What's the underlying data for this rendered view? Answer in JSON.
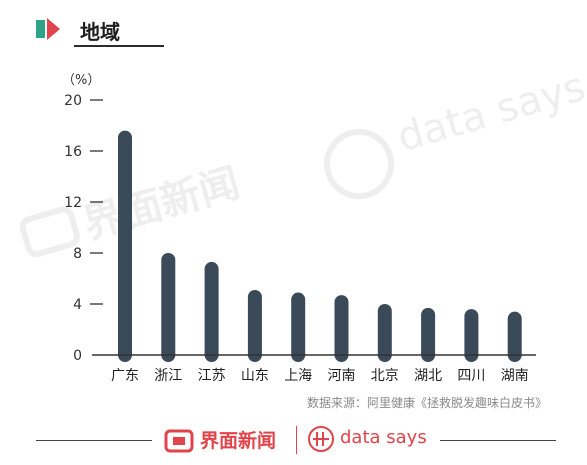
{
  "header": {
    "title": "地域"
  },
  "source_note": "数据来源：阿里健康《拯救脱发趣味白皮书》",
  "footer": {
    "brand": "界面新闻",
    "partner": "data says"
  },
  "watermark": {
    "brand": "界面新闻",
    "partner": "data says"
  },
  "colors": {
    "bar": "#3b4a58",
    "accent_red": "#e1444a",
    "accent_teal": "#2fa38a",
    "axis": "#333333"
  },
  "chart_data": {
    "type": "bar",
    "unit_label": "（%）",
    "categories": [
      "广东",
      "浙江",
      "江苏",
      "山东",
      "上海",
      "河南",
      "北京",
      "湖北",
      "四川",
      "湖南"
    ],
    "values": [
      17.6,
      8.0,
      7.3,
      5.1,
      4.9,
      4.7,
      4.0,
      3.7,
      3.6,
      3.4
    ],
    "yticks": [
      0,
      4,
      8,
      12,
      16,
      20
    ],
    "ylim": [
      0,
      20
    ],
    "grid": false
  }
}
